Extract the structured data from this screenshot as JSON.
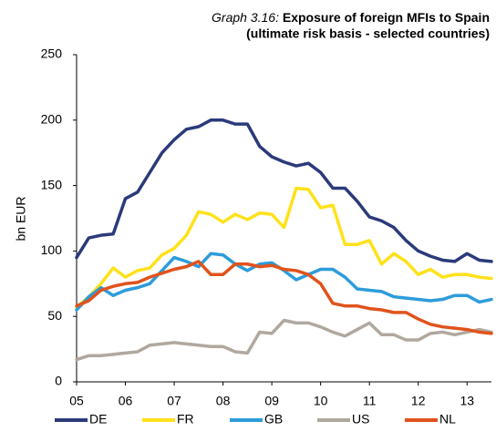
{
  "chart_data": {
    "type": "line",
    "title": {
      "number": "Graph 3.16:",
      "line1": "Exposure of foreign MFIs to Spain",
      "line2": "(ultimate risk basis - selected countries)"
    },
    "y_label": "bn EUR",
    "x": [
      2005,
      2005.25,
      2005.5,
      2005.75,
      2006,
      2006.25,
      2006.5,
      2006.75,
      2007,
      2007.25,
      2007.5,
      2007.75,
      2008,
      2008.25,
      2008.5,
      2008.75,
      2009,
      2009.25,
      2009.5,
      2009.75,
      2010,
      2010.25,
      2010.5,
      2010.75,
      2011,
      2011.25,
      2011.5,
      2011.75,
      2012,
      2012.25,
      2012.5,
      2012.75,
      2013,
      2013.25,
      2013.5
    ],
    "series": [
      {
        "name": "DE",
        "color": "#2b3a7a",
        "values": [
          95,
          110,
          112,
          113,
          140,
          145,
          160,
          175,
          185,
          193,
          195,
          200,
          200,
          197,
          197,
          180,
          172,
          168,
          165,
          167,
          160,
          148,
          148,
          138,
          126,
          123,
          118,
          108,
          100,
          96,
          93,
          92,
          98,
          93,
          92
        ]
      },
      {
        "name": "FR",
        "color": "#ffe11a",
        "values": [
          57,
          65,
          75,
          87,
          80,
          85,
          87,
          97,
          102,
          112,
          130,
          128,
          122,
          128,
          124,
          129,
          128,
          118,
          148,
          147,
          133,
          135,
          105,
          105,
          108,
          90,
          98,
          92,
          82,
          86,
          80,
          82,
          82,
          80,
          79
        ]
      },
      {
        "name": "GB",
        "color": "#2d9cdb",
        "values": [
          55,
          65,
          72,
          66,
          70,
          72,
          75,
          85,
          95,
          92,
          88,
          98,
          97,
          90,
          85,
          90,
          91,
          85,
          78,
          82,
          86,
          86,
          80,
          71,
          70,
          69,
          65,
          64,
          63,
          62,
          63,
          66,
          66,
          61,
          63
        ]
      },
      {
        "name": "US",
        "color": "#b0a89f",
        "values": [
          17,
          20,
          20,
          21,
          22,
          23,
          28,
          29,
          30,
          29,
          28,
          27,
          27,
          23,
          22,
          38,
          37,
          47,
          45,
          45,
          42,
          38,
          35,
          40,
          45,
          36,
          36,
          32,
          32,
          37,
          38,
          36,
          38,
          40,
          38
        ]
      },
      {
        "name": "NL",
        "color": "#e0531c",
        "values": [
          58,
          62,
          70,
          73,
          75,
          76,
          80,
          83,
          86,
          88,
          92,
          82,
          82,
          90,
          90,
          88,
          89,
          86,
          85,
          82,
          75,
          60,
          58,
          58,
          56,
          55,
          53,
          53,
          48,
          44,
          42,
          41,
          40,
          38,
          37
        ]
      }
    ],
    "xlim": [
      2005,
      2013.5
    ],
    "xticks": [
      {
        "value": 2005,
        "label": "05"
      },
      {
        "value": 2006,
        "label": "06"
      },
      {
        "value": 2007,
        "label": "07"
      },
      {
        "value": 2008,
        "label": "08"
      },
      {
        "value": 2009,
        "label": "09"
      },
      {
        "value": 2010,
        "label": "10"
      },
      {
        "value": 2011,
        "label": "11"
      },
      {
        "value": 2012,
        "label": "12"
      },
      {
        "value": 2013,
        "label": "13"
      }
    ],
    "ylim": [
      0,
      250
    ],
    "yticks": [
      0,
      50,
      100,
      150,
      200,
      250
    ],
    "grid": false,
    "legend": "bottom"
  }
}
